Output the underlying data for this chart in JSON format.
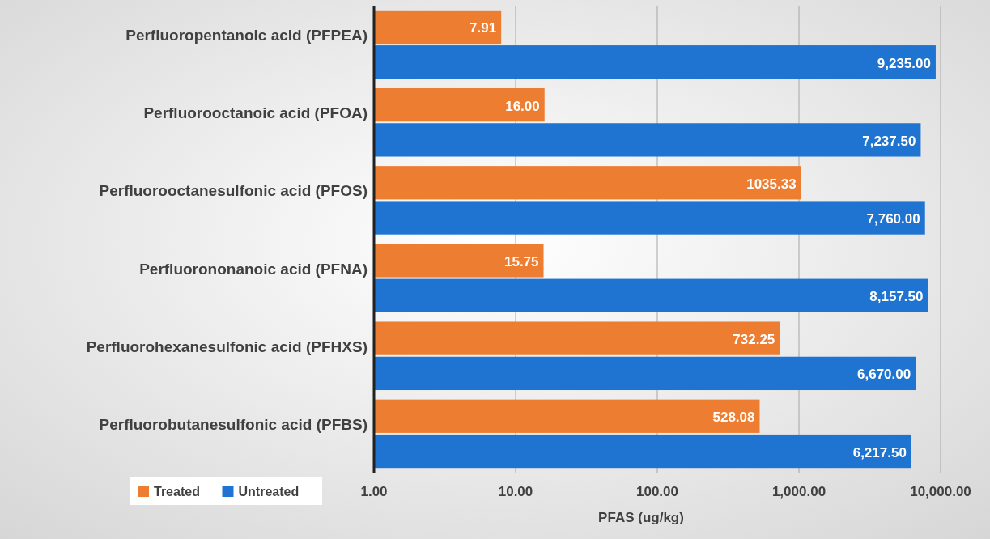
{
  "chart_data": {
    "type": "bar",
    "orientation": "horizontal",
    "log": "x",
    "grid": "x",
    "legend": "bottom left",
    "xlabel": "PFAS (ug/kg)",
    "categories": [
      "Perfluoropentanoic acid (PFPEA)",
      "Perfluorooctanoic acid (PFOA)",
      "Perfluorooctanesulfonic acid (PFOS)",
      "Perfluorononanoic acid (PFNA)",
      "Perfluorohexanesulfonic acid (PFHXS)",
      "Perfluorobutanesulfonic acid (PFBS)"
    ],
    "xlim": [
      1,
      10000
    ],
    "xticks": [
      {
        "value": 1,
        "label": "1.00"
      },
      {
        "value": 10,
        "label": "10.00"
      },
      {
        "value": 100,
        "label": "100.00"
      },
      {
        "value": 1000,
        "label": "1,000.00"
      },
      {
        "value": 10000,
        "label": "10,000.00"
      }
    ],
    "series": [
      {
        "name": "Treated",
        "color": "#ed7d31",
        "values": [
          7.91,
          16,
          1035.33,
          15.75,
          732.25,
          528.08
        ],
        "value_labels": [
          "7.91",
          "16.00",
          "1035.33",
          "15.75",
          "732.25",
          "528.08"
        ]
      },
      {
        "name": "Untreated",
        "color": "#1f74d1",
        "values": [
          9235,
          7237.5,
          7760,
          8157.5,
          6670,
          6217.5
        ],
        "value_labels": [
          "9,235.00",
          "7,237.50",
          "7,760.00",
          "8,157.50",
          "6,670.00",
          "6,217.50"
        ]
      }
    ]
  }
}
